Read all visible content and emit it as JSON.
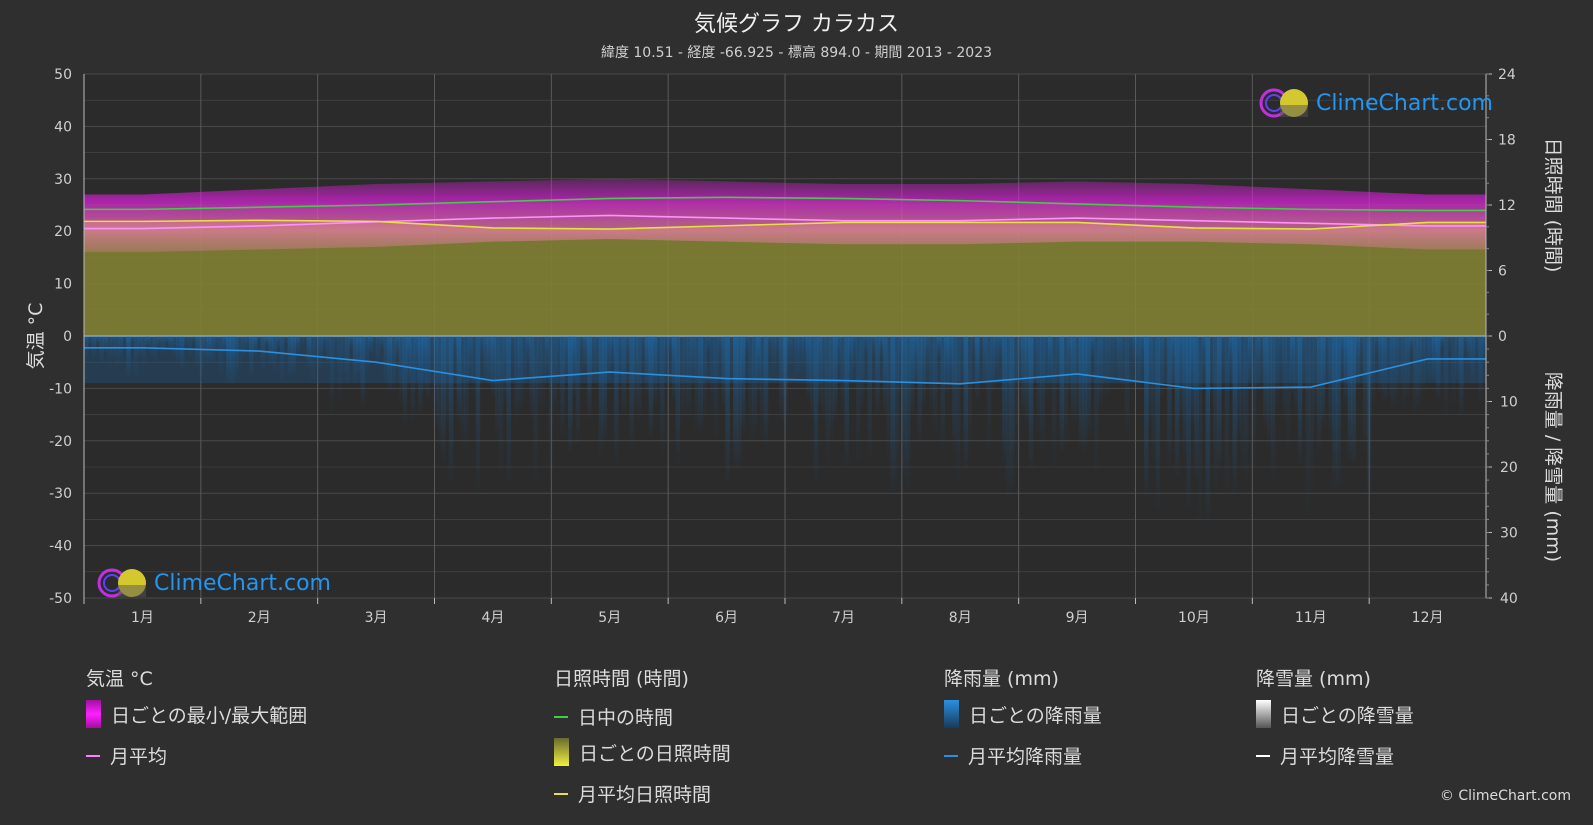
{
  "title": "気候グラフ カラカス",
  "subtitle": "緯度 10.51 - 経度 -66.925 - 標高 894.0 - 期間 2013 - 2023",
  "logo_text": "ClimeChart.com",
  "copyright": "© ClimeChart.com",
  "axes": {
    "left_label": "気温 °C",
    "right_top_label": "日照時間 (時間)",
    "right_bottom_label": "降雨量 / 降雪量 (mm)",
    "left_ticks": [
      "50",
      "40",
      "30",
      "20",
      "10",
      "0",
      "-10",
      "-20",
      "-30",
      "-40",
      "-50"
    ],
    "right_top_ticks": [
      "24",
      "18",
      "12",
      "6",
      "0"
    ],
    "right_bottom_ticks": [
      "10",
      "20",
      "30",
      "40"
    ]
  },
  "legend": {
    "temp_head": "気温 °C",
    "temp_range": "日ごとの最小/最大範囲",
    "temp_avg": "月平均",
    "sun_head": "日照時間 (時間)",
    "sun_daylight": "日中の時間",
    "sun_daily": "日ごとの日照時間",
    "sun_avg": "月平均日照時間",
    "rain_head": "降雨量 (mm)",
    "rain_daily": "日ごとの降雨量",
    "rain_avg": "月平均降雨量",
    "snow_head": "降雪量 (mm)",
    "snow_daily": "日ごとの降雪量",
    "snow_avg": "月平均降雪量"
  },
  "colors": {
    "temp_range": "#e020e0",
    "temp_avg": "#ff80ff",
    "daylight": "#44cc44",
    "sunshine_fill": "#8a8a30",
    "sunshine_avg": "#e8e040",
    "rain": "#1e6fb0",
    "rain_avg": "#2a90e0",
    "snow_avg": "#ffffff"
  },
  "chart_data": {
    "type": "line",
    "categories": [
      "1月",
      "2月",
      "3月",
      "4月",
      "5月",
      "6月",
      "7月",
      "8月",
      "9月",
      "10月",
      "11月",
      "12月"
    ],
    "temp_ylim": [
      -50,
      50
    ],
    "sun_ylim": [
      0,
      24
    ],
    "precip_ylim": [
      0,
      40
    ],
    "series": [
      {
        "name": "日中の時間",
        "axis": "sun",
        "values": [
          11.6,
          11.8,
          12.0,
          12.3,
          12.6,
          12.7,
          12.6,
          12.4,
          12.1,
          11.8,
          11.6,
          11.5
        ]
      },
      {
        "name": "月平均日照時間",
        "axis": "sun",
        "values": [
          10.5,
          10.6,
          10.5,
          9.9,
          9.8,
          10.1,
          10.4,
          10.4,
          10.4,
          9.9,
          9.8,
          10.4
        ]
      },
      {
        "name": "月平均",
        "axis": "temp",
        "values": [
          20.5,
          21.0,
          21.8,
          22.5,
          23.0,
          22.5,
          22.0,
          22.0,
          22.5,
          22.0,
          21.5,
          21.0
        ]
      },
      {
        "name": "日ごとの最小/最大範囲 (max)",
        "axis": "temp",
        "values": [
          27,
          28,
          29,
          29.5,
          30,
          29.5,
          29,
          29,
          29.5,
          29,
          28,
          27
        ]
      },
      {
        "name": "日ごとの最小/最大範囲 (min)",
        "axis": "temp",
        "values": [
          16,
          16.5,
          17,
          18,
          18.5,
          18,
          17.5,
          17.5,
          18,
          18,
          17.5,
          16.5
        ]
      },
      {
        "name": "月平均降雨量",
        "axis": "precip",
        "values": [
          1.8,
          2.3,
          4.0,
          6.8,
          5.5,
          6.5,
          6.8,
          7.3,
          5.8,
          8.0,
          7.8,
          3.5
        ]
      },
      {
        "name": "月平均降雪量",
        "axis": "precip",
        "values": [
          0,
          0,
          0,
          0,
          0,
          0,
          0,
          0,
          0,
          0,
          0,
          0
        ]
      }
    ]
  }
}
